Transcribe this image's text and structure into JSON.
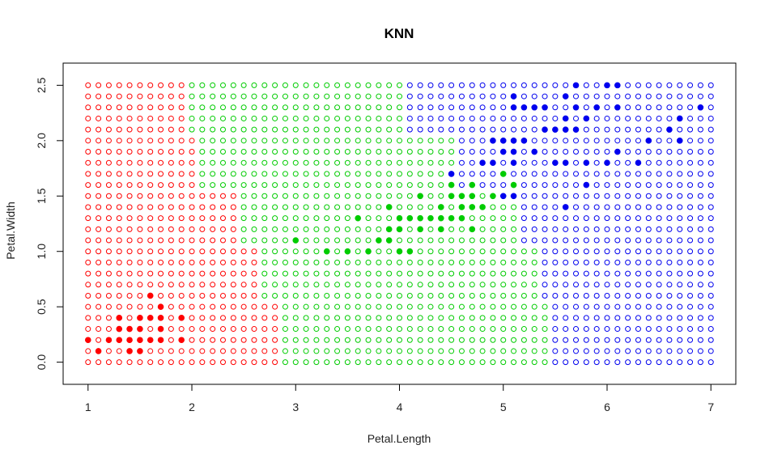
{
  "chart_data": {
    "type": "scatter",
    "title": "KNN",
    "xlabel": "Petal.Length",
    "ylabel": "Petal.Width",
    "xlim": [
      0.76,
      7.24
    ],
    "ylim": [
      -0.2,
      2.7
    ],
    "x_ticks": [
      1,
      2,
      3,
      4,
      5,
      6,
      7
    ],
    "y_ticks": [
      0.0,
      0.5,
      1.0,
      1.5,
      2.0,
      2.5
    ],
    "x_tick_labels": [
      "1",
      "2",
      "3",
      "4",
      "5",
      "6",
      "7"
    ],
    "y_tick_labels": [
      "0.0",
      "0.5",
      "1.0",
      "1.5",
      "2.0",
      "2.5"
    ],
    "grid": {
      "x_start": 1.0,
      "x_end": 7.0,
      "x_step": 0.1,
      "y_start": 0.0,
      "y_end": 2.5,
      "y_step": 0.1,
      "marker": "open-circle",
      "class_boundaries": [
        {
          "y_max": 0.5,
          "red_max_x": 2.8,
          "green_max_x": 5.4
        },
        {
          "y_max": 1.0,
          "red_max_x": 2.6,
          "green_max_x": 5.3
        },
        {
          "y_max": 1.5,
          "red_max_x": 2.4,
          "green_max_x": 5.1
        },
        {
          "y_max": 2.0,
          "red_max_x": 2.0,
          "green_max_x": 4.5
        },
        {
          "y_max": 2.6,
          "red_max_x": 1.9,
          "green_max_x": 4.0
        }
      ]
    },
    "series": [
      {
        "marker": "filled-circle",
        "color": "#ff0000",
        "points": [
          [
            1.0,
            0.2
          ],
          [
            1.1,
            0.1
          ],
          [
            1.2,
            0.2
          ],
          [
            1.3,
            0.2
          ],
          [
            1.3,
            0.3
          ],
          [
            1.3,
            0.4
          ],
          [
            1.4,
            0.1
          ],
          [
            1.4,
            0.2
          ],
          [
            1.4,
            0.3
          ],
          [
            1.5,
            0.1
          ],
          [
            1.5,
            0.2
          ],
          [
            1.5,
            0.3
          ],
          [
            1.5,
            0.4
          ],
          [
            1.6,
            0.2
          ],
          [
            1.6,
            0.4
          ],
          [
            1.6,
            0.6
          ],
          [
            1.7,
            0.2
          ],
          [
            1.7,
            0.3
          ],
          [
            1.7,
            0.4
          ],
          [
            1.7,
            0.5
          ],
          [
            1.9,
            0.2
          ],
          [
            1.9,
            0.4
          ]
        ]
      },
      {
        "marker": "filled-circle",
        "color": "#00cc00",
        "points": [
          [
            3.0,
            1.1
          ],
          [
            3.3,
            1.0
          ],
          [
            3.5,
            1.0
          ],
          [
            3.6,
            1.3
          ],
          [
            3.7,
            1.0
          ],
          [
            3.8,
            1.1
          ],
          [
            3.9,
            1.1
          ],
          [
            3.9,
            1.2
          ],
          [
            3.9,
            1.4
          ],
          [
            4.0,
            1.0
          ],
          [
            4.0,
            1.2
          ],
          [
            4.0,
            1.3
          ],
          [
            4.1,
            1.0
          ],
          [
            4.1,
            1.3
          ],
          [
            4.2,
            1.2
          ],
          [
            4.2,
            1.3
          ],
          [
            4.2,
            1.5
          ],
          [
            4.3,
            1.3
          ],
          [
            4.4,
            1.2
          ],
          [
            4.4,
            1.3
          ],
          [
            4.4,
            1.4
          ],
          [
            4.5,
            1.3
          ],
          [
            4.5,
            1.5
          ],
          [
            4.5,
            1.6
          ],
          [
            4.6,
            1.3
          ],
          [
            4.6,
            1.4
          ],
          [
            4.6,
            1.5
          ],
          [
            4.7,
            1.2
          ],
          [
            4.7,
            1.4
          ],
          [
            4.7,
            1.5
          ],
          [
            4.7,
            1.6
          ],
          [
            4.8,
            1.4
          ],
          [
            4.9,
            1.5
          ],
          [
            5.0,
            1.7
          ],
          [
            5.1,
            1.6
          ]
        ]
      },
      {
        "marker": "filled-circle",
        "color": "#0000ee",
        "points": [
          [
            4.5,
            1.7
          ],
          [
            4.8,
            1.8
          ],
          [
            4.9,
            1.8
          ],
          [
            4.9,
            2.0
          ],
          [
            5.0,
            1.5
          ],
          [
            5.0,
            1.9
          ],
          [
            5.0,
            2.0
          ],
          [
            5.1,
            1.5
          ],
          [
            5.1,
            1.8
          ],
          [
            5.1,
            1.9
          ],
          [
            5.1,
            2.0
          ],
          [
            5.1,
            2.3
          ],
          [
            5.1,
            2.4
          ],
          [
            5.2,
            2.0
          ],
          [
            5.2,
            2.3
          ],
          [
            5.3,
            1.9
          ],
          [
            5.3,
            2.3
          ],
          [
            5.4,
            2.1
          ],
          [
            5.4,
            2.3
          ],
          [
            5.5,
            1.8
          ],
          [
            5.5,
            2.1
          ],
          [
            5.6,
            1.4
          ],
          [
            5.6,
            1.8
          ],
          [
            5.6,
            2.1
          ],
          [
            5.6,
            2.2
          ],
          [
            5.6,
            2.4
          ],
          [
            5.7,
            2.1
          ],
          [
            5.7,
            2.3
          ],
          [
            5.7,
            2.5
          ],
          [
            5.8,
            1.6
          ],
          [
            5.8,
            1.8
          ],
          [
            5.8,
            2.2
          ],
          [
            5.9,
            2.3
          ],
          [
            6.0,
            1.8
          ],
          [
            6.0,
            2.5
          ],
          [
            6.1,
            1.9
          ],
          [
            6.1,
            2.3
          ],
          [
            6.1,
            2.5
          ],
          [
            6.3,
            1.8
          ],
          [
            6.4,
            2.0
          ],
          [
            6.6,
            2.1
          ],
          [
            6.7,
            2.0
          ],
          [
            6.7,
            2.2
          ],
          [
            6.9,
            2.3
          ]
        ]
      }
    ]
  },
  "colors": {
    "class_red": "#ff0000",
    "class_green": "#00cc00",
    "class_blue": "#0000ee",
    "axis": "#000000"
  }
}
